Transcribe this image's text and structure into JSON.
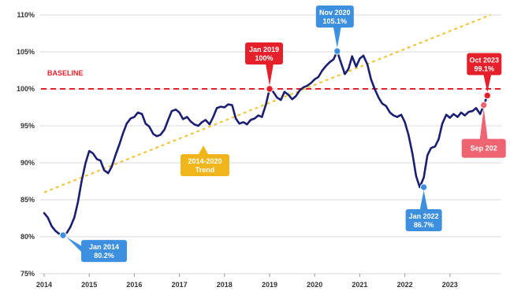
{
  "chart_data": {
    "type": "line",
    "title": "",
    "xlabel": "",
    "ylabel": "",
    "x_tick_labels": [
      "2014",
      "2015",
      "2016",
      "2017",
      "2018",
      "2019",
      "2020",
      "2021",
      "2022",
      "2023"
    ],
    "x_range": [
      2014.0,
      2024.0
    ],
    "y_tick_labels": [
      "75%",
      "80%",
      "85%",
      "90%",
      "95%",
      "100%",
      "105%",
      "110%"
    ],
    "y_ticks": [
      75,
      80,
      85,
      90,
      95,
      100,
      105,
      110
    ],
    "ylim": [
      75,
      110.5
    ],
    "grid": "horizontal",
    "colors": {
      "series": "#1a1f71",
      "baseline": "#e5202a",
      "trend": "#f2c12e",
      "callout_blue": "#3d8fe0",
      "callout_red": "#e5202a",
      "callout_gold": "#efb51b",
      "callout_pink": "#ee6470",
      "grid": "#d9d9d9"
    },
    "baseline": {
      "label": "BASELINE",
      "value": 100
    },
    "trend": {
      "label_line1": "2014-2020",
      "label_line2": "Trend",
      "start": [
        2014.0,
        86.0
      ],
      "end": [
        2023.9,
        110.0
      ]
    },
    "series": [
      {
        "x": [
          2014.0,
          2014.08,
          2014.17,
          2014.25,
          2014.33,
          2014.42,
          2014.5,
          2014.58,
          2014.67,
          2014.75,
          2014.83,
          2014.92,
          2015.0,
          2015.08,
          2015.17,
          2015.25,
          2015.33,
          2015.42,
          2015.5,
          2015.58,
          2015.67,
          2015.75,
          2015.83,
          2015.92,
          2016.0,
          2016.08,
          2016.17,
          2016.25,
          2016.33,
          2016.42,
          2016.5,
          2016.58,
          2016.67,
          2016.75,
          2016.83,
          2016.92,
          2017.0,
          2017.08,
          2017.17,
          2017.25,
          2017.33,
          2017.42,
          2017.5,
          2017.58,
          2017.67,
          2017.75,
          2017.83,
          2017.92,
          2018.0,
          2018.08,
          2018.17,
          2018.25,
          2018.33,
          2018.42,
          2018.5,
          2018.58,
          2018.67,
          2018.75,
          2018.83,
          2018.92,
          2019.0,
          2019.08,
          2019.17,
          2019.25,
          2019.33,
          2019.42,
          2019.5,
          2019.58,
          2019.67,
          2019.75,
          2019.83,
          2019.92,
          2020.0,
          2020.08,
          2020.17,
          2020.25,
          2020.33,
          2020.42,
          2020.5,
          2020.58,
          2020.67,
          2020.75,
          2020.83,
          2020.92,
          2021.0,
          2021.08,
          2021.17,
          2021.25,
          2021.33,
          2021.42,
          2021.5,
          2021.58,
          2021.67,
          2021.75,
          2021.83,
          2021.92,
          2022.0,
          2022.08,
          2022.17,
          2022.25,
          2022.33,
          2022.42,
          2022.5,
          2022.58,
          2022.67,
          2022.75,
          2022.83,
          2022.92,
          2023.0,
          2023.08,
          2023.17,
          2023.25,
          2023.33,
          2023.42,
          2023.5,
          2023.58,
          2023.67,
          2023.75,
          2023.83
        ],
        "y": [
          83.2,
          82.6,
          81.4,
          80.8,
          80.4,
          80.2,
          80.5,
          81.3,
          82.6,
          84.7,
          87.5,
          90.0,
          91.6,
          91.3,
          90.5,
          90.3,
          89.0,
          88.6,
          89.5,
          91.0,
          92.5,
          94.0,
          95.3,
          96.0,
          96.2,
          96.8,
          96.6,
          95.3,
          94.9,
          93.9,
          93.6,
          93.8,
          94.5,
          95.8,
          97.0,
          97.2,
          96.8,
          95.9,
          96.2,
          95.6,
          95.2,
          95.0,
          95.5,
          95.8,
          95.2,
          96.2,
          97.4,
          97.6,
          97.5,
          97.9,
          97.8,
          96.0,
          95.3,
          95.5,
          95.2,
          95.8,
          96.0,
          96.4,
          96.2,
          97.9,
          100.0,
          99.6,
          98.8,
          98.5,
          99.6,
          99.2,
          98.6,
          99.0,
          99.8,
          100.2,
          100.4,
          100.8,
          101.3,
          101.6,
          102.5,
          103.1,
          103.6,
          104.0,
          105.1,
          103.6,
          102.0,
          102.7,
          104.4,
          103.0,
          104.1,
          104.5,
          103.3,
          101.3,
          100.0,
          98.8,
          98.0,
          97.7,
          96.8,
          96.4,
          96.2,
          96.5,
          95.5,
          93.8,
          91.2,
          88.2,
          86.7,
          88.0,
          91.0,
          92.0,
          92.2,
          93.2,
          95.3,
          96.5,
          96.1,
          96.6,
          96.2,
          96.8,
          96.4,
          96.9,
          97.0,
          97.4,
          96.6,
          97.8,
          99.1
        ]
      }
    ],
    "annotations": [
      {
        "label_line1": "Jan 2014",
        "label_line2": "80.2%",
        "x": 2014.42,
        "y": 80.2,
        "style": "blue"
      },
      {
        "label_line1": "Jan 2019",
        "label_line2": "100%",
        "x": 2019.0,
        "y": 100.0,
        "style": "red"
      },
      {
        "label_line1": "Nov 2020",
        "label_line2": "105.1%",
        "x": 2020.5,
        "y": 105.1,
        "style": "blue"
      },
      {
        "label_line1": "Jan 2022",
        "label_line2": "86.7%",
        "x": 2022.42,
        "y": 86.7,
        "style": "blue"
      },
      {
        "label_line1": "Oct 2023",
        "label_line2": "99.1%",
        "x": 2023.83,
        "y": 99.1,
        "style": "red"
      },
      {
        "label_line1": "Sep 202",
        "label_line2": "",
        "x": 2023.75,
        "y": 97.8,
        "style": "pink"
      }
    ]
  }
}
